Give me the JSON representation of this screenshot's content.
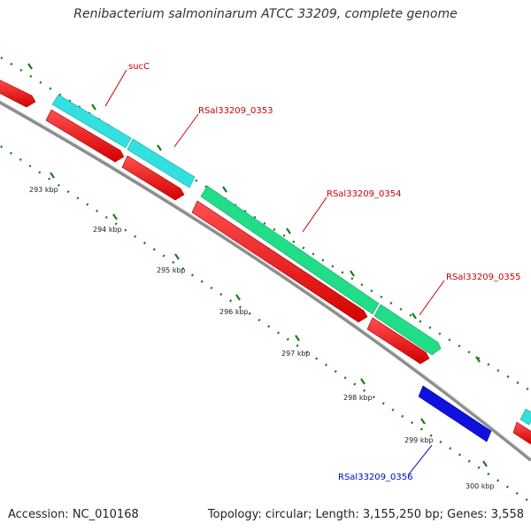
{
  "title": "Renibacterium salmoninarum ATCC 33209, complete genome",
  "footer": {
    "accession": "Accession: NC_010168",
    "summary": "Topology: circular; Length: 3,155,250 bp; Genes: 3,558"
  },
  "colors": {
    "backbone": "#8c8c8c",
    "tick": "#1e7a1e",
    "cds_reverse": "#ff0000",
    "cds_forward_cyan": "#33e0e0",
    "cds_forward_green": "#22dd88",
    "cds_blue": "#1111dd",
    "label_red": "#cc0000",
    "label_blue": "#0000cc"
  },
  "scale_labels": [
    "293 kbp",
    "294 kbp",
    "295 kbp",
    "296 kbp",
    "297 kbp",
    "298 kbp",
    "299 kbp",
    "300 kbp"
  ],
  "gene_labels": [
    {
      "text": "sucC",
      "color": "#cc0000"
    },
    {
      "text": "RSal33209_0353",
      "color": "#cc0000"
    },
    {
      "text": "RSal33209_0354",
      "color": "#cc0000"
    },
    {
      "text": "RSal33209_0355",
      "color": "#cc0000"
    },
    {
      "text": "RSal33209_0356",
      "color": "#0000cc"
    }
  ]
}
